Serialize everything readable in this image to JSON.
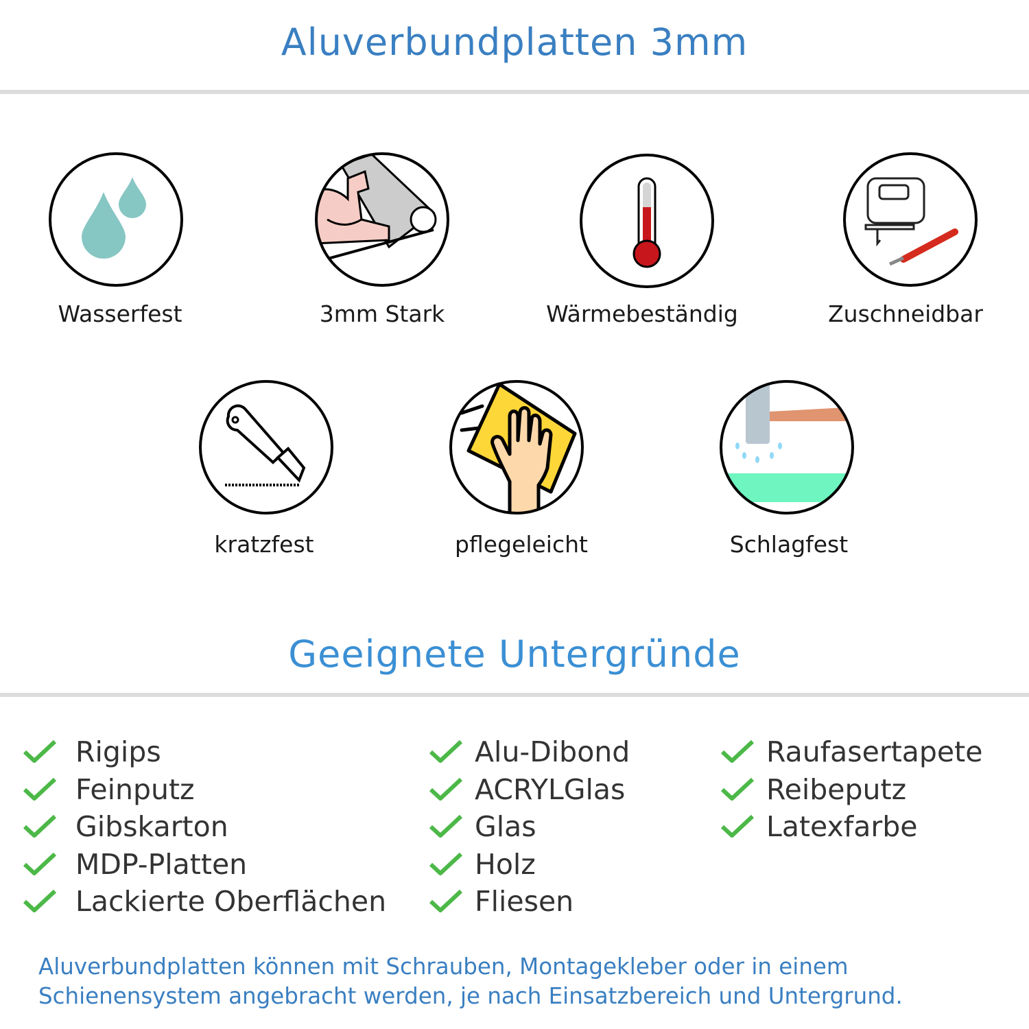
{
  "header": {
    "title": "Aluverbundplatten 3mm"
  },
  "features": [
    {
      "label": "Wasserfest",
      "icon": "water-drops-icon"
    },
    {
      "label": "3mm Stark",
      "icon": "strong-arm-icon"
    },
    {
      "label": "Wärmebeständig",
      "icon": "thermometer-icon"
    },
    {
      "label": "Zuschneidbar",
      "icon": "jigsaw-cutter-icon"
    },
    {
      "label": "kratzfest",
      "icon": "utility-knife-icon"
    },
    {
      "label": "pflegeleicht",
      "icon": "cleaning-hand-icon"
    },
    {
      "label": "Schlagfest",
      "icon": "hammer-impact-icon"
    }
  ],
  "surfaces": {
    "title": "Geeignete Untergründe",
    "columns": [
      [
        "Rigips",
        "Feinputz",
        "Gibskarton",
        "MDP-Platten",
        "Lackierte Oberflächen"
      ],
      [
        "Alu-Dibond",
        "ACRYLGlas",
        "Glas",
        "Holz",
        "Fliesen"
      ],
      [
        "Raufasertapete",
        "Reibeputz",
        "Latexfarbe"
      ]
    ]
  },
  "footer": {
    "line1": "Aluverbundplatten können mit Schrauben, Montagekleber oder in einem",
    "line2": "Schienensystem angebracht werden, je nach Einsatzbereich und Untergrund."
  },
  "colors": {
    "title": "#3a7fc1",
    "heading": "#3b8fd4",
    "check": "#4cb848",
    "text": "#333333"
  }
}
